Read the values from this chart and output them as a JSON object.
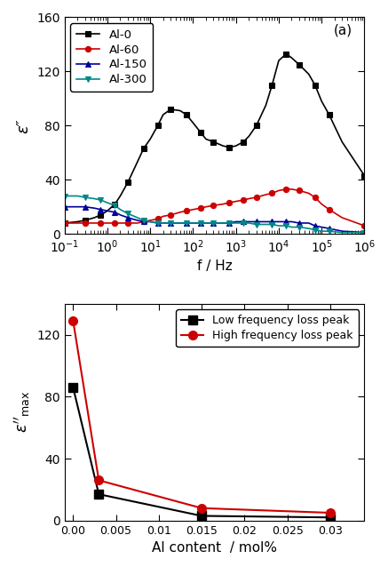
{
  "panel_a": {
    "label": "(a)",
    "ylabel": "ε″",
    "xlabel": "f / Hz",
    "ylim": [
      0,
      160
    ],
    "yticks": [
      0,
      40,
      80,
      120,
      160
    ],
    "series": {
      "Al-0": {
        "color": "#000000",
        "marker": "s",
        "x": [
          0.1,
          0.2,
          0.3,
          0.5,
          0.7,
          1.0,
          1.5,
          2.0,
          3.0,
          5.0,
          7.0,
          10,
          15,
          20,
          30,
          50,
          70,
          100,
          150,
          200,
          300,
          500,
          700,
          1000,
          1500,
          2000,
          3000,
          5000,
          7000,
          10000,
          15000,
          20000,
          30000,
          50000,
          70000,
          100000,
          150000,
          300000,
          1000000
        ],
        "y": [
          8,
          9,
          10,
          12,
          14,
          17,
          22,
          28,
          38,
          53,
          63,
          70,
          80,
          88,
          92,
          91,
          88,
          82,
          75,
          70,
          68,
          65,
          64,
          65,
          68,
          72,
          80,
          95,
          110,
          128,
          133,
          130,
          125,
          118,
          110,
          98,
          88,
          68,
          43
        ]
      },
      "Al-60": {
        "color": "#cc0000",
        "marker": "o",
        "x": [
          0.1,
          0.2,
          0.3,
          0.5,
          0.7,
          1.0,
          1.5,
          2.0,
          3.0,
          5.0,
          7.0,
          10,
          15,
          20,
          30,
          50,
          70,
          100,
          150,
          200,
          300,
          500,
          700,
          1000,
          1500,
          2000,
          3000,
          5000,
          7000,
          10000,
          15000,
          20000,
          30000,
          50000,
          70000,
          100000,
          150000,
          300000,
          1000000
        ],
        "y": [
          8,
          8,
          8,
          8,
          8,
          8,
          8,
          8,
          8,
          8,
          9,
          10,
          11,
          13,
          14,
          16,
          17,
          18,
          19,
          20,
          21,
          22,
          23,
          24,
          25,
          26,
          27,
          29,
          30,
          32,
          33,
          33,
          32,
          30,
          27,
          22,
          18,
          12,
          6
        ]
      },
      "Al-150": {
        "color": "#000099",
        "marker": "^",
        "x": [
          0.1,
          0.2,
          0.3,
          0.5,
          0.7,
          1.0,
          1.5,
          2.0,
          3.0,
          5.0,
          7.0,
          10,
          15,
          20,
          30,
          50,
          70,
          100,
          150,
          200,
          300,
          500,
          700,
          1000,
          1500,
          2000,
          3000,
          5000,
          7000,
          10000,
          15000,
          20000,
          30000,
          50000,
          70000,
          100000,
          150000,
          300000,
          1000000
        ],
        "y": [
          20,
          20,
          20,
          19,
          18,
          17,
          16,
          14,
          12,
          10,
          9,
          9,
          8,
          8,
          8,
          8,
          8,
          8,
          8,
          8,
          8,
          8,
          8,
          9,
          9,
          9,
          9,
          9,
          9,
          9,
          9,
          9,
          8,
          8,
          6,
          5,
          4,
          2,
          1
        ]
      },
      "Al-300": {
        "color": "#008888",
        "marker": "v",
        "x": [
          0.1,
          0.2,
          0.3,
          0.5,
          0.7,
          1.0,
          1.5,
          2.0,
          3.0,
          5.0,
          7.0,
          10,
          15,
          20,
          30,
          50,
          70,
          100,
          150,
          200,
          300,
          500,
          700,
          1000,
          1500,
          2000,
          3000,
          5000,
          7000,
          10000,
          15000,
          20000,
          30000,
          50000,
          70000,
          100000,
          150000,
          300000,
          1000000
        ],
        "y": [
          28,
          28,
          27,
          26,
          25,
          23,
          21,
          18,
          15,
          12,
          10,
          9,
          8,
          8,
          8,
          8,
          8,
          8,
          8,
          8,
          8,
          8,
          8,
          8,
          8,
          8,
          7,
          7,
          7,
          6,
          6,
          5,
          5,
          4,
          3,
          2,
          2,
          1,
          1
        ]
      }
    }
  },
  "panel_b": {
    "label": "(b)",
    "ylabel_top": "ε″",
    "ylabel_bottom": "max",
    "xlabel": "Al content  / mol%",
    "xlim": [
      -0.001,
      0.034
    ],
    "ylim": [
      0,
      140
    ],
    "yticks": [
      0,
      40,
      80,
      120
    ],
    "xticks": [
      0.0,
      0.005,
      0.01,
      0.015,
      0.02,
      0.025,
      0.03
    ],
    "xticklabels": [
      "0.00",
      "0.005",
      "0.01",
      "0.015",
      "0.02",
      "0.025",
      "0.03"
    ],
    "low_freq": {
      "color": "#000000",
      "marker": "s",
      "label": "Low frequency loss peak",
      "x": [
        0.0,
        0.003,
        0.015,
        0.03
      ],
      "y": [
        86,
        17,
        3,
        2
      ]
    },
    "high_freq": {
      "color": "#cc0000",
      "marker": "o",
      "label": "High frequency loss peak",
      "x": [
        0.0,
        0.003,
        0.015,
        0.03
      ],
      "y": [
        129,
        26,
        8,
        5
      ]
    }
  }
}
